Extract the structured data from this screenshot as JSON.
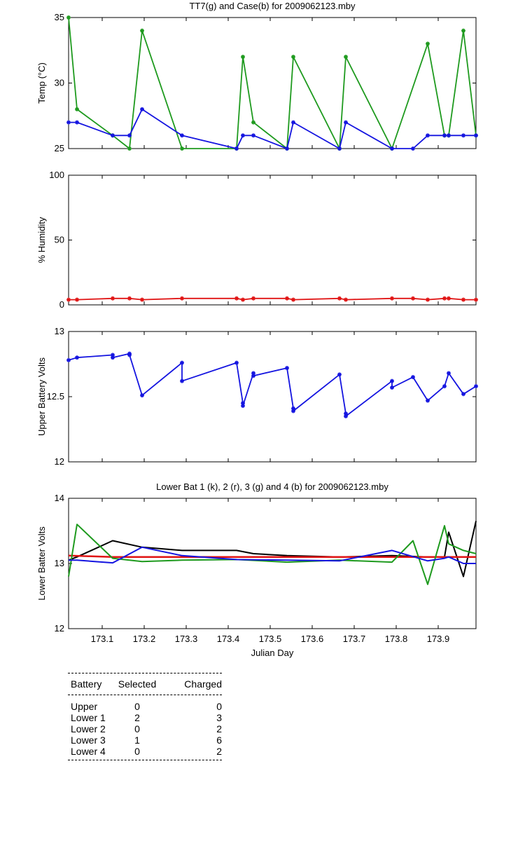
{
  "chart_data": [
    {
      "type": "line",
      "title": "TT7(g) and Case(b) for 2009062123.mby",
      "xlabel": "",
      "ylabel": "Temp  (°C)",
      "xlim": [
        173.02,
        173.99
      ],
      "ylim": [
        25,
        35
      ],
      "yticks": [
        25,
        30,
        35
      ],
      "series": [
        {
          "color": "#1e9a1e",
          "marker": "star",
          "x": [
            173.02,
            173.04,
            173.125,
            173.165,
            173.195,
            173.29,
            173.42,
            173.435,
            173.46,
            173.54,
            173.555,
            173.665,
            173.68,
            173.79,
            173.875,
            173.915,
            173.925,
            173.96,
            173.99
          ],
          "values": [
            35,
            28,
            26,
            25,
            34,
            25,
            25,
            32,
            27,
            25,
            32,
            25,
            32,
            25,
            33,
            26,
            26,
            34,
            26
          ]
        },
        {
          "color": "#1414e0",
          "marker": "star",
          "x": [
            173.02,
            173.04,
            173.125,
            173.165,
            173.195,
            173.29,
            173.42,
            173.435,
            173.46,
            173.54,
            173.555,
            173.665,
            173.68,
            173.79,
            173.84,
            173.875,
            173.915,
            173.925,
            173.96,
            173.99
          ],
          "values": [
            27,
            27,
            26,
            26,
            28,
            26,
            25,
            26,
            26,
            25,
            27,
            25,
            27,
            25,
            25,
            26,
            26,
            26,
            26,
            26
          ]
        }
      ]
    },
    {
      "type": "line",
      "title": "",
      "xlabel": "",
      "ylabel": "% Humidity",
      "xlim": [
        173.02,
        173.99
      ],
      "ylim": [
        0,
        100
      ],
      "yticks": [
        0,
        50,
        100
      ],
      "series": [
        {
          "color": "#e01414",
          "marker": "star",
          "x": [
            173.02,
            173.04,
            173.125,
            173.165,
            173.195,
            173.29,
            173.42,
            173.435,
            173.46,
            173.54,
            173.555,
            173.665,
            173.68,
            173.79,
            173.84,
            173.875,
            173.915,
            173.925,
            173.96,
            173.99
          ],
          "values": [
            4,
            4,
            5,
            5,
            4,
            5,
            5,
            4,
            5,
            5,
            4,
            5,
            4,
            5,
            5,
            4,
            5,
            5,
            4,
            4
          ]
        }
      ]
    },
    {
      "type": "line",
      "title": "",
      "xlabel": "",
      "ylabel": "Upper Battery Volts",
      "xlim": [
        173.02,
        173.99
      ],
      "ylim": [
        12,
        13
      ],
      "yticks": [
        12,
        12.5,
        13
      ],
      "series": [
        {
          "color": "#1414e0",
          "marker": "star",
          "x": [
            173.02,
            173.04,
            173.125,
            173.125,
            173.165,
            173.165,
            173.195,
            173.29,
            173.29,
            173.42,
            173.435,
            173.435,
            173.46,
            173.46,
            173.54,
            173.555,
            173.555,
            173.665,
            173.68,
            173.68,
            173.79,
            173.79,
            173.84,
            173.875,
            173.915,
            173.925,
            173.96,
            173.99
          ],
          "values": [
            12.78,
            12.8,
            12.82,
            12.8,
            12.83,
            12.82,
            12.51,
            12.76,
            12.62,
            12.76,
            12.45,
            12.43,
            12.68,
            12.66,
            12.72,
            12.41,
            12.39,
            12.67,
            12.37,
            12.35,
            12.62,
            12.57,
            12.65,
            12.47,
            12.58,
            12.68,
            12.52,
            12.58
          ]
        }
      ]
    },
    {
      "type": "line",
      "title": "Lower Bat 1 (k), 2 (r), 3 (g) and 4 (b) for 2009062123.mby",
      "xlabel": "Julian Day",
      "ylabel": "Lower Batter Volts",
      "xlim": [
        173.02,
        173.99
      ],
      "ylim": [
        12,
        14
      ],
      "yticks": [
        12,
        13,
        14
      ],
      "xticks": [
        173.1,
        173.2,
        173.3,
        173.4,
        173.5,
        173.6,
        173.7,
        173.8,
        173.9
      ],
      "series": [
        {
          "color": "#000000",
          "marker": "none",
          "x": [
            173.02,
            173.04,
            173.125,
            173.195,
            173.29,
            173.42,
            173.46,
            173.54,
            173.665,
            173.79,
            173.875,
            173.915,
            173.925,
            173.96,
            173.99
          ],
          "values": [
            13.05,
            13.1,
            13.35,
            13.25,
            13.2,
            13.2,
            13.15,
            13.12,
            13.1,
            13.12,
            13.1,
            13.1,
            13.48,
            12.8,
            13.65
          ]
        },
        {
          "color": "#e01414",
          "marker": "none",
          "x": [
            173.02,
            173.125,
            173.29,
            173.54,
            173.79,
            173.99
          ],
          "values": [
            13.12,
            13.1,
            13.1,
            13.1,
            13.1,
            13.1
          ]
        },
        {
          "color": "#1e9a1e",
          "marker": "none",
          "x": [
            173.02,
            173.04,
            173.125,
            173.195,
            173.29,
            173.42,
            173.54,
            173.665,
            173.79,
            173.84,
            173.875,
            173.915,
            173.925,
            173.96,
            173.99
          ],
          "values": [
            12.8,
            13.6,
            13.08,
            13.03,
            13.05,
            13.06,
            13.02,
            13.05,
            13.02,
            13.35,
            12.68,
            13.58,
            13.3,
            13.2,
            13.15
          ]
        },
        {
          "color": "#1414e0",
          "marker": "none",
          "x": [
            173.02,
            173.04,
            173.125,
            173.195,
            173.29,
            173.42,
            173.54,
            173.665,
            173.79,
            173.875,
            173.915,
            173.925,
            173.96,
            173.99
          ],
          "values": [
            13.05,
            13.05,
            13.01,
            13.25,
            13.12,
            13.06,
            13.05,
            13.04,
            13.2,
            13.04,
            13.08,
            13.1,
            13.0,
            13.0
          ]
        }
      ]
    }
  ],
  "battery_table": {
    "headers": [
      "Battery",
      "Selected",
      "Charged"
    ],
    "rows": [
      {
        "battery": "Upper",
        "selected": "0",
        "charged": "0"
      },
      {
        "battery": "Lower 1",
        "selected": "2",
        "charged": "3"
      },
      {
        "battery": "Lower 2",
        "selected": "0",
        "charged": "2"
      },
      {
        "battery": "Lower 3",
        "selected": "1",
        "charged": "6"
      },
      {
        "battery": "Lower 4",
        "selected": "0",
        "charged": "2"
      }
    ]
  }
}
